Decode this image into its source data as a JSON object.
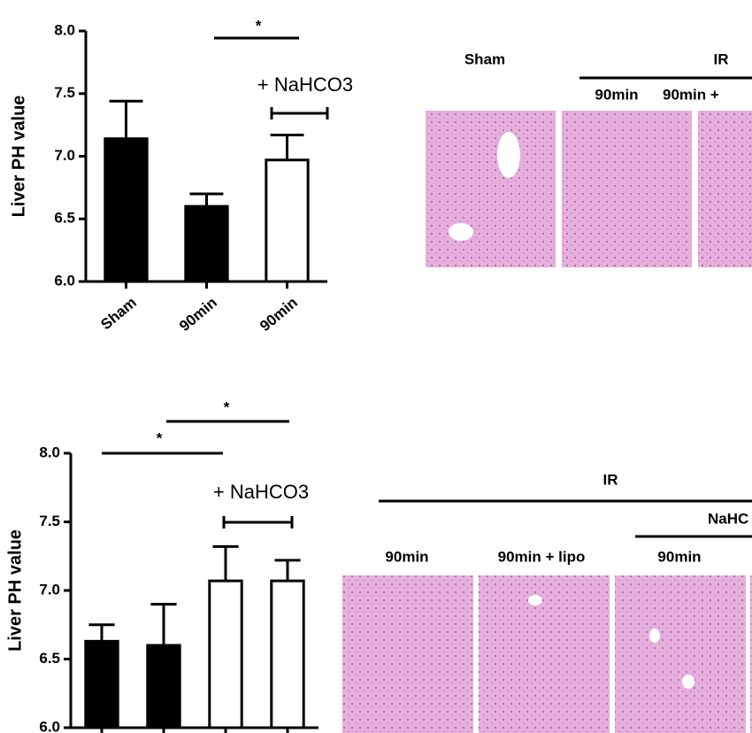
{
  "chart_data": [
    {
      "type": "bar",
      "y_label": "Liver PH value",
      "categories": [
        "Sham",
        "90min",
        "90min"
      ],
      "values": [
        7.14,
        6.6,
        6.97
      ],
      "errors": [
        0.3,
        0.1,
        0.2
      ],
      "colors": [
        "#000000",
        "#000000",
        "#ffffff"
      ],
      "ylim": [
        6,
        8
      ],
      "yticks": [
        {
          "value": 6,
          "label": "6.0"
        },
        {
          "value": 6.5,
          "label": "6.5"
        },
        {
          "value": 7,
          "label": "7.0"
        },
        {
          "value": 7.5,
          "label": "7.5"
        },
        {
          "value": 8,
          "label": "8.0"
        }
      ],
      "annotations": [
        "*",
        "+ NaHCO3"
      ]
    },
    {
      "type": "bar",
      "y_label": "Liver PH value",
      "categories": [
        null,
        null,
        null,
        null
      ],
      "values": [
        6.63,
        6.6,
        7.07,
        7.07
      ],
      "errors": [
        0.12,
        0.3,
        0.25,
        0.15
      ],
      "colors": [
        "#000000",
        "#000000",
        "#ffffff",
        "#ffffff"
      ],
      "ylim": [
        6,
        8
      ],
      "yticks": [
        {
          "value": 6,
          "label": "6.0"
        },
        {
          "value": 6.5,
          "label": "6.5"
        },
        {
          "value": 7,
          "label": "7.0"
        },
        {
          "value": 7.5,
          "label": "7.5"
        },
        {
          "value": 8,
          "label": "8.0"
        }
      ],
      "annotations": [
        "*",
        "*",
        "+ NaHCO3"
      ]
    }
  ],
  "image_panels": {
    "top": {
      "labels": [
        "Sham",
        "IR",
        "90min",
        "90min +"
      ]
    },
    "bottom": {
      "labels": [
        "IR",
        "NaHC",
        "90min",
        "90min + lipo",
        "90min"
      ]
    }
  }
}
